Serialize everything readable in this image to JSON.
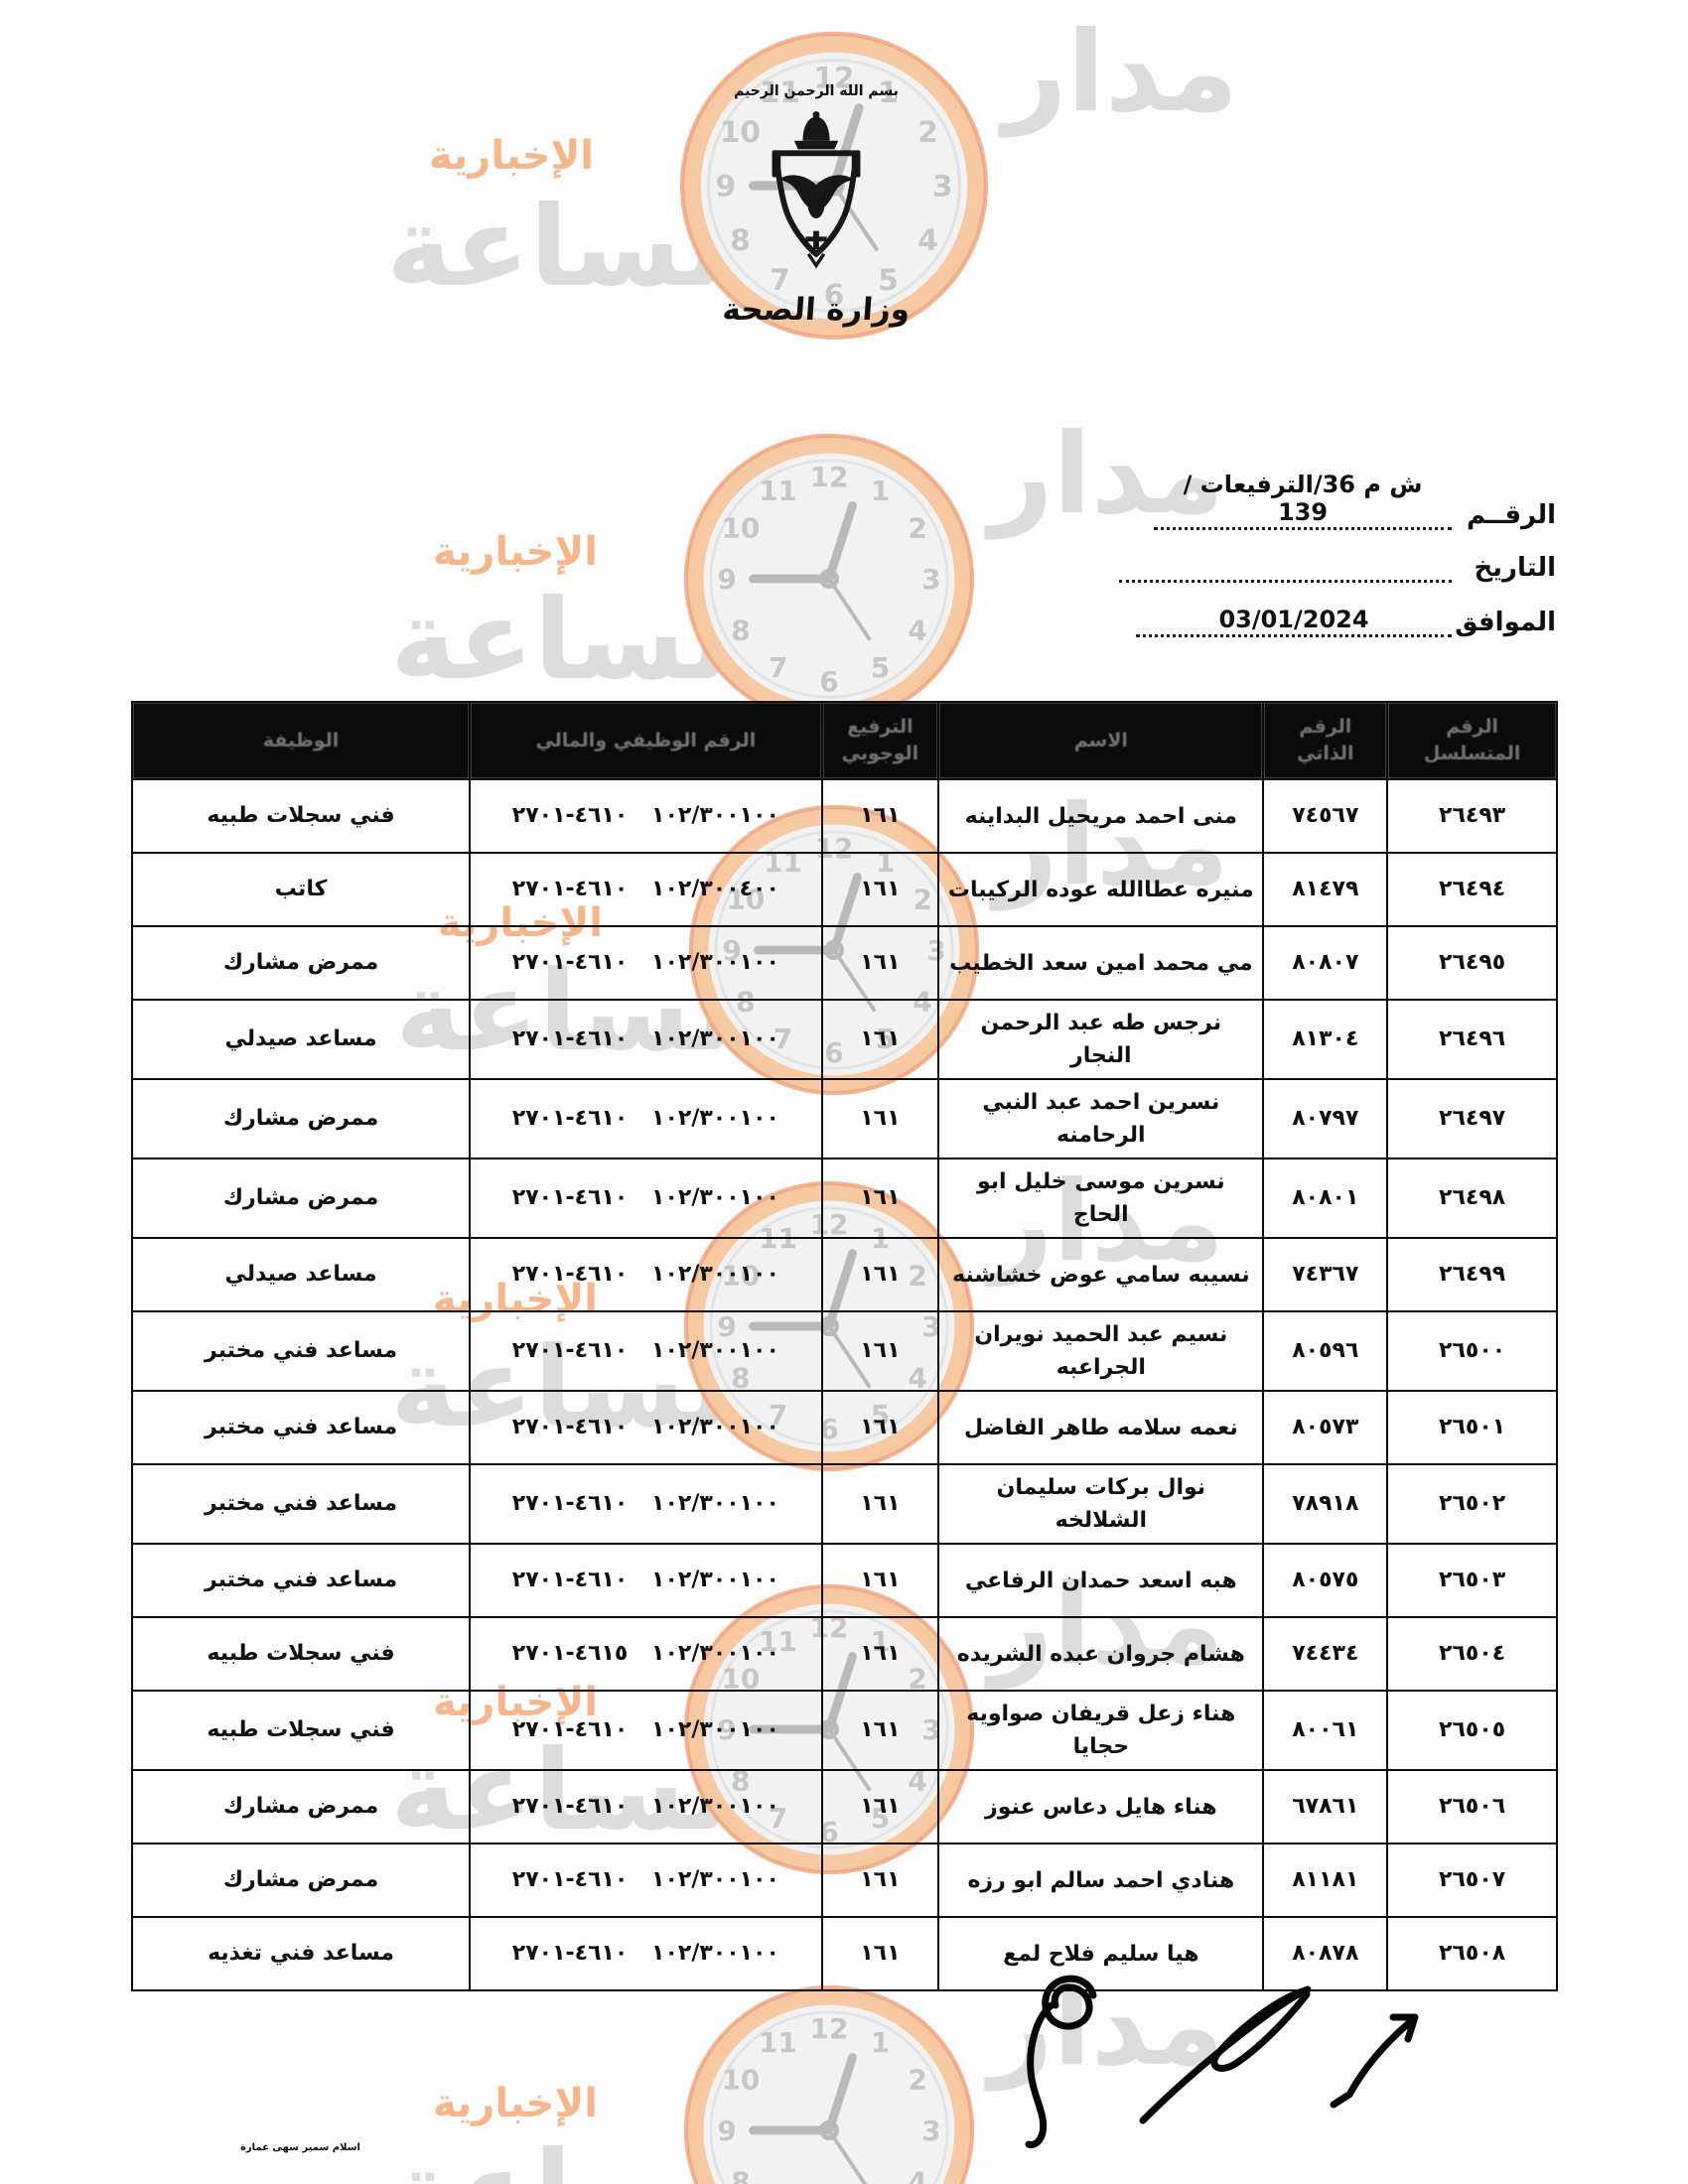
{
  "watermark": {
    "brand_right": "مدار",
    "brand_left": "الساعة",
    "suffix": "الإخبارية",
    "clock_numerals": [
      "12",
      "1",
      "2",
      "3",
      "4",
      "5",
      "6",
      "7",
      "8",
      "9",
      "10",
      "11"
    ],
    "colors": {
      "orange_ring": "#f6c9a2",
      "orange_text": "#f5b68c",
      "gray_text": "#dcdcdc",
      "face": "#f2f2f2",
      "hands": "#b9b9b9",
      "numerals": "#c6c6c6"
    }
  },
  "header": {
    "bismillah": "بسم الله الرحمن الرحيم",
    "ministry": "وزارة الصحة",
    "ref_no_label": "الرقــم",
    "ref_no_value": "ش م 36/الترفيعات / 139",
    "date_label": "التاريخ",
    "date_value": "",
    "agreed_label": "الموافق",
    "agreed_value": "03/01/2024"
  },
  "table": {
    "headers": [
      "الرقم المتسلسل",
      "الرقم الذاتي",
      "الاسم",
      "الترفيع الوجوبي",
      "الرقم الوظيفي والمالي",
      "الوظيفة"
    ],
    "rows": [
      {
        "seq": "٢٦٤٩٣",
        "id": "٧٤٥٦٧",
        "name": "منى احمد مريحيل البداينه",
        "grade": "١٦١",
        "financial": "١٠٢/٣٠٠١٠٠ ٤٦١٠-٢٧٠١",
        "job": "فني سجلات طبيه"
      },
      {
        "seq": "٢٦٤٩٤",
        "id": "٨١٤٧٩",
        "name": "منيره عطاالله عوده الركيبات",
        "grade": "١٦١",
        "financial": "١٠٢/٣٠٠٤٠٠ ٤٦١٠-٢٧٠١",
        "job": "كاتب"
      },
      {
        "seq": "٢٦٤٩٥",
        "id": "٨٠٨٠٧",
        "name": "مي محمد امين سعد الخطيب",
        "grade": "١٦١",
        "financial": "١٠٢/٣٠٠١٠٠ ٤٦١٠-٢٧٠١",
        "job": "ممرض مشارك"
      },
      {
        "seq": "٢٦٤٩٦",
        "id": "٨١٣٠٤",
        "name": "نرجس طه عبد الرحمن النجار",
        "grade": "١٦١",
        "financial": "١٠٢/٣٠٠١٠٠ ٤٦١٠-٢٧٠١",
        "job": "مساعد صيدلي"
      },
      {
        "seq": "٢٦٤٩٧",
        "id": "٨٠٧٩٧",
        "name": "نسرين احمد عبد النبي الرحامنه",
        "grade": "١٦١",
        "financial": "١٠٢/٣٠٠١٠٠ ٤٦١٠-٢٧٠١",
        "job": "ممرض مشارك"
      },
      {
        "seq": "٢٦٤٩٨",
        "id": "٨٠٨٠١",
        "name": "نسرين موسى خليل ابو الحاج",
        "grade": "١٦١",
        "financial": "١٠٢/٣٠٠١٠٠ ٤٦١٠-٢٧٠١",
        "job": "ممرض مشارك"
      },
      {
        "seq": "٢٦٤٩٩",
        "id": "٧٤٣٦٧",
        "name": "نسيبه سامي عوض خشاشنه",
        "grade": "١٦١",
        "financial": "١٠٢/٣٠٠١٠٠ ٤٦١٠-٢٧٠١",
        "job": "مساعد صيدلي"
      },
      {
        "seq": "٢٦٥٠٠",
        "id": "٨٠٥٩٦",
        "name": "نسيم عبد الحميد نويران الجراعبه",
        "grade": "١٦١",
        "financial": "١٠٢/٣٠٠١٠٠ ٤٦١٠-٢٧٠١",
        "job": "مساعد فني مختبر"
      },
      {
        "seq": "٢٦٥٠١",
        "id": "٨٠٥٧٣",
        "name": "نعمه سلامه طاهر الفاضل",
        "grade": "١٦١",
        "financial": "١٠٢/٣٠٠١٠٠ ٤٦١٠-٢٧٠١",
        "job": "مساعد فني مختبر"
      },
      {
        "seq": "٢٦٥٠٢",
        "id": "٧٨٩١٨",
        "name": "نوال بركات سليمان الشلالخه",
        "grade": "١٦١",
        "financial": "١٠٢/٣٠٠١٠٠ ٤٦١٠-٢٧٠١",
        "job": "مساعد فني مختبر"
      },
      {
        "seq": "٢٦٥٠٣",
        "id": "٨٠٥٧٥",
        "name": "هبه اسعد حمدان الرفاعي",
        "grade": "١٦١",
        "financial": "١٠٢/٣٠٠١٠٠ ٤٦١٠-٢٧٠١",
        "job": "مساعد فني مختبر"
      },
      {
        "seq": "٢٦٥٠٤",
        "id": "٧٤٤٣٤",
        "name": "هشام جروان عبده الشريده",
        "grade": "١٦١",
        "financial": "١٠٢/٣٠٠١٠٠ ٤٦١٥-٢٧٠١",
        "job": "فني سجلات طبيه"
      },
      {
        "seq": "٢٦٥٠٥",
        "id": "٨٠٠٦١",
        "name": "هناء زعل قريفان صواويه حجايا",
        "grade": "١٦١",
        "financial": "١٠٢/٣٠٠١٠٠ ٤٦١٠-٢٧٠١",
        "job": "فني سجلات طبيه"
      },
      {
        "seq": "٢٦٥٠٦",
        "id": "٦٧٨٦١",
        "name": "هناء هايل دعاس عنوز",
        "grade": "١٦١",
        "financial": "١٠٢/٣٠٠١٠٠ ٤٦١٠-٢٧٠١",
        "job": "ممرض مشارك"
      },
      {
        "seq": "٢٦٥٠٧",
        "id": "٨١١٨١",
        "name": "هنادي احمد سالم ابو رزه",
        "grade": "١٦١",
        "financial": "١٠٢/٣٠٠١٠٠ ٤٦١٠-٢٧٠١",
        "job": "ممرض مشارك"
      },
      {
        "seq": "٢٦٥٠٨",
        "id": "٨٠٨٧٨",
        "name": "هيا سليم فلاح لمع",
        "grade": "١٦١",
        "financial": "١٠٢/٣٠٠١٠٠ ٤٦١٠-٢٧٠١",
        "job": "مساعد فني تغذيه"
      }
    ]
  },
  "footer": {
    "note": "اسلام سمير سهى عمارة"
  }
}
